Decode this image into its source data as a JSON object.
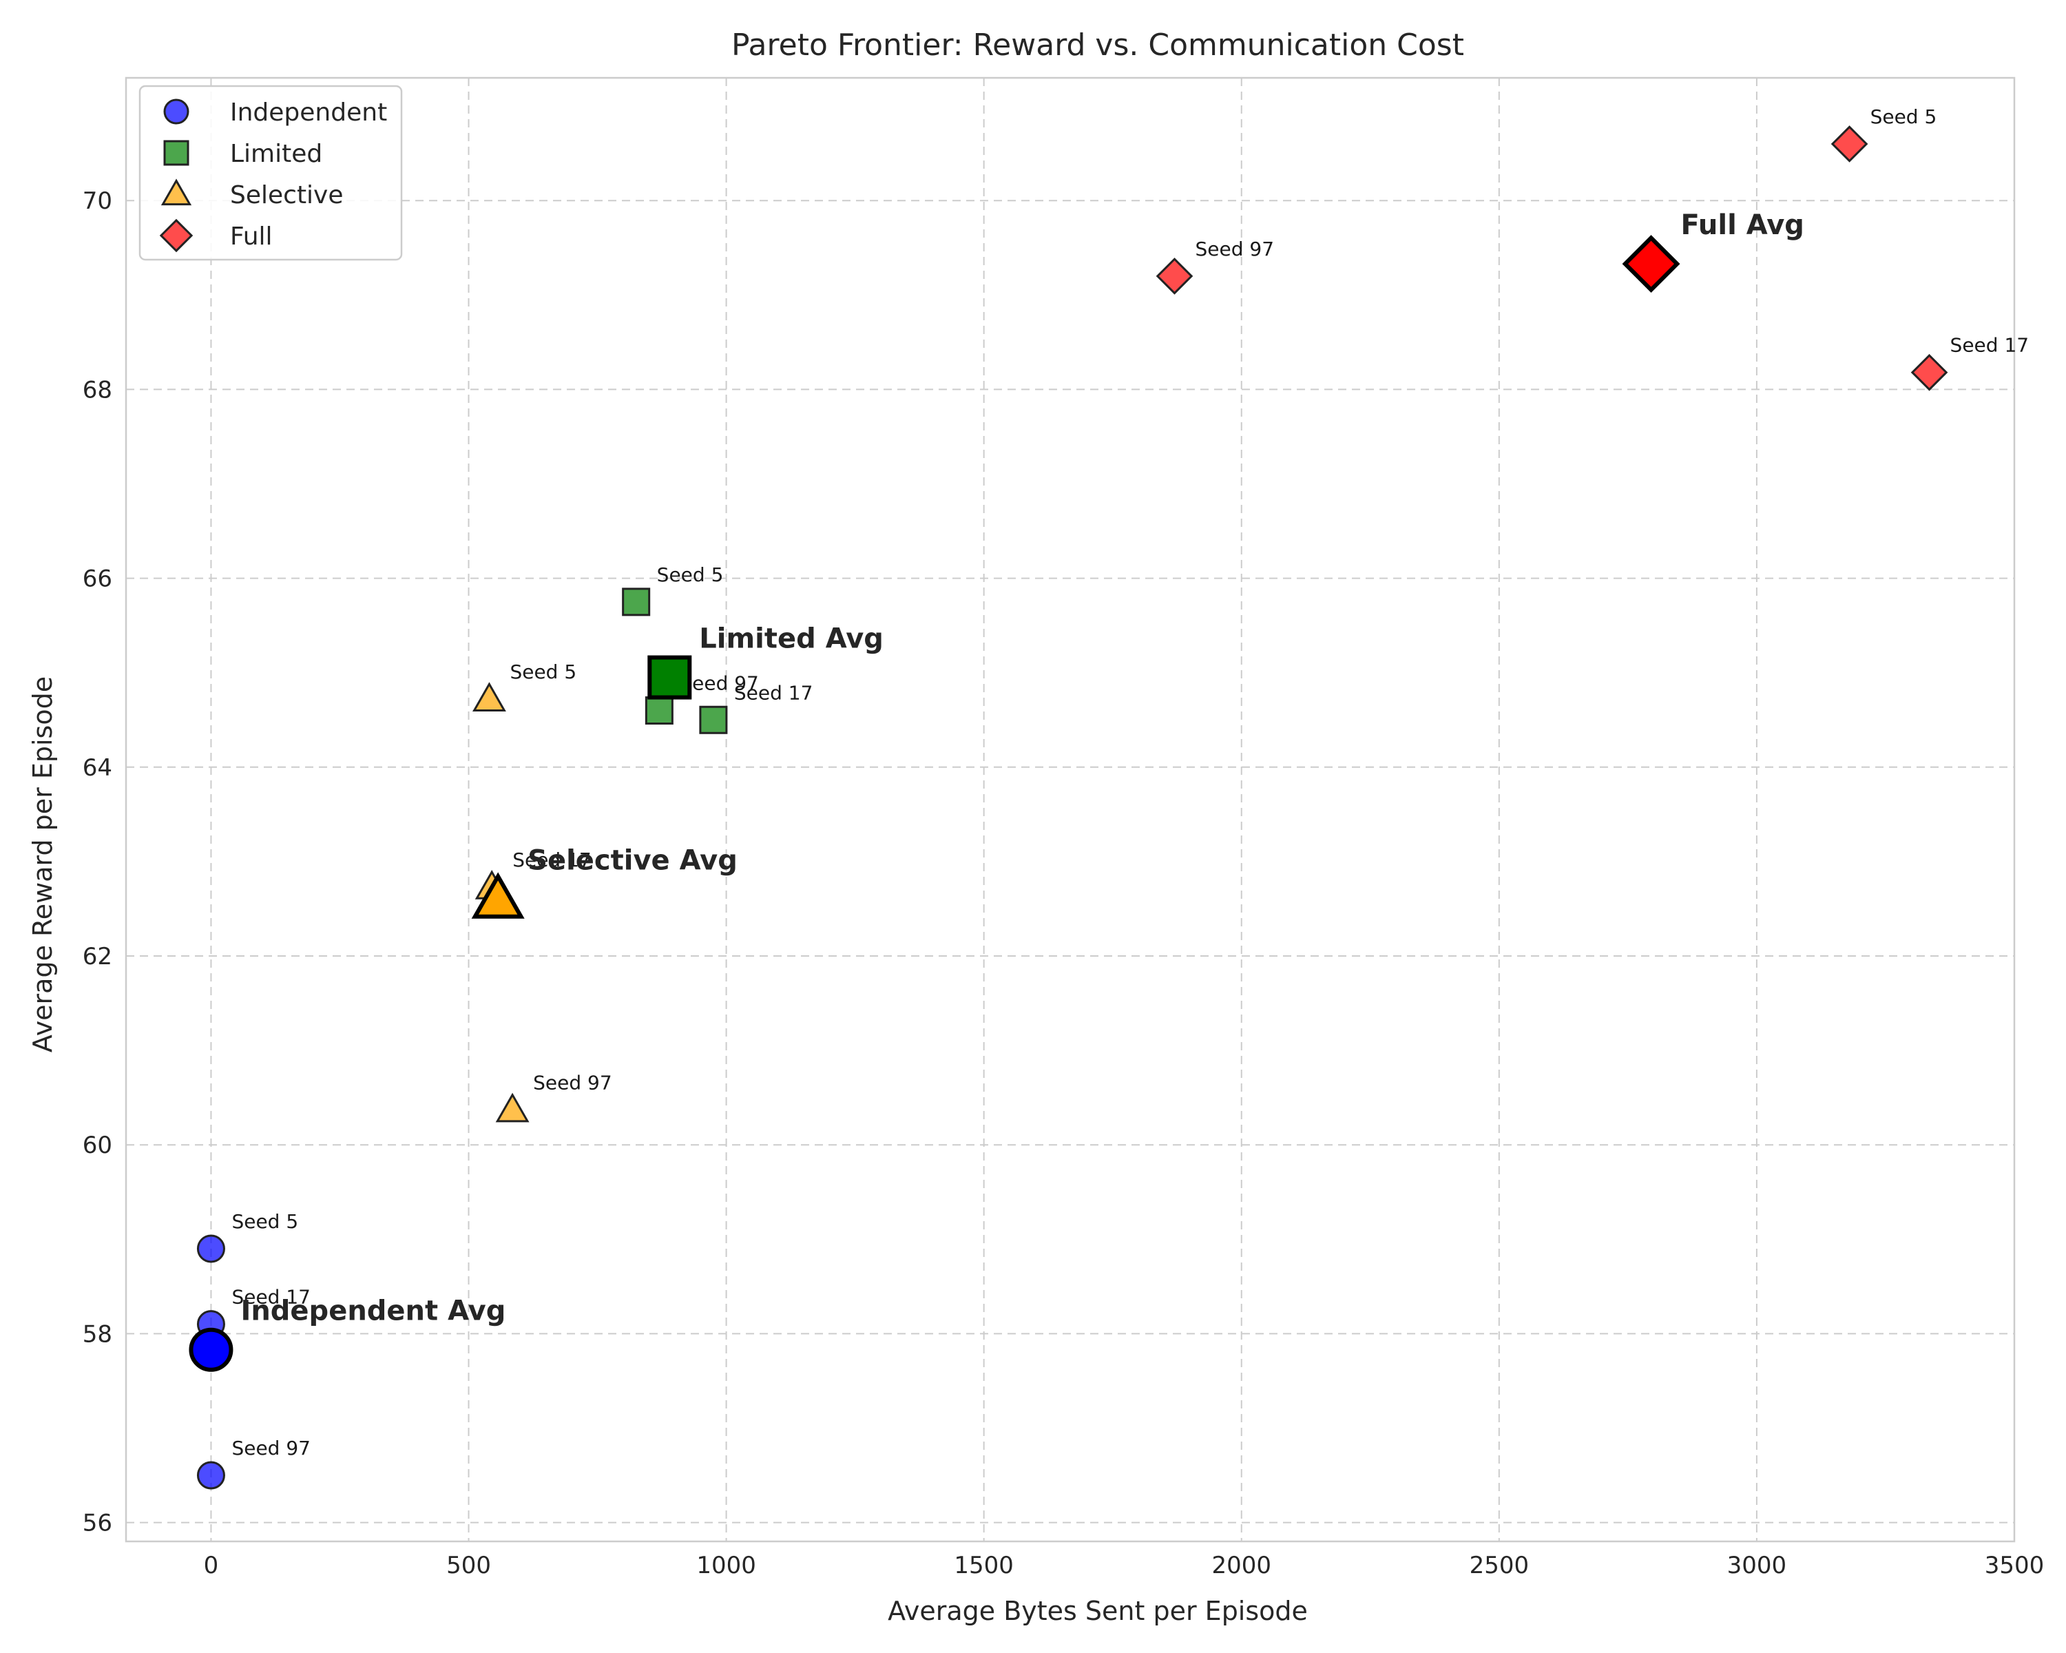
{
  "chart_data": {
    "type": "scatter",
    "title": "Pareto Frontier: Reward vs. Communication Cost",
    "xlabel": "Average Bytes Sent per Episode",
    "ylabel": "Average Reward per Episode",
    "xlim": [
      -165,
      3500
    ],
    "ylim": [
      55.8,
      71.3
    ],
    "xticks": [
      0,
      500,
      1000,
      1500,
      2000,
      2500,
      3000,
      3500
    ],
    "yticks": [
      56,
      58,
      60,
      62,
      64,
      66,
      68,
      70
    ],
    "grid": true,
    "legend_position": "upper-left",
    "series": [
      {
        "name": "Independent",
        "marker": "circle",
        "color": "#0000ff",
        "points": [
          {
            "x": 0,
            "y": 58.9,
            "label": "Seed 5"
          },
          {
            "x": 0,
            "y": 58.1,
            "label": "Seed 17"
          },
          {
            "x": 0,
            "y": 56.5,
            "label": "Seed 97"
          }
        ],
        "average": {
          "x": 0,
          "y": 57.83,
          "label": "Independent Avg"
        }
      },
      {
        "name": "Limited",
        "marker": "square",
        "color": "#008000",
        "points": [
          {
            "x": 825,
            "y": 65.75,
            "label": "Seed 5"
          },
          {
            "x": 975,
            "y": 64.5,
            "label": "Seed 17"
          },
          {
            "x": 870,
            "y": 64.6,
            "label": "Seed 97"
          }
        ],
        "average": {
          "x": 890,
          "y": 64.95,
          "label": "Limited Avg"
        }
      },
      {
        "name": "Selective",
        "marker": "triangle",
        "color": "#ffa500",
        "points": [
          {
            "x": 540,
            "y": 64.72,
            "label": "Seed 5"
          },
          {
            "x": 545,
            "y": 62.73,
            "label": "Seed 17"
          },
          {
            "x": 585,
            "y": 60.37,
            "label": "Seed 97"
          }
        ],
        "average": {
          "x": 557,
          "y": 62.6,
          "label": "Selective Avg"
        }
      },
      {
        "name": "Full",
        "marker": "diamond",
        "color": "#ff0000",
        "points": [
          {
            "x": 3180,
            "y": 70.6,
            "label": "Seed 5"
          },
          {
            "x": 3335,
            "y": 68.18,
            "label": "Seed 17"
          },
          {
            "x": 1870,
            "y": 69.2,
            "label": "Seed 97"
          }
        ],
        "average": {
          "x": 2795,
          "y": 69.33,
          "label": "Full Avg"
        }
      }
    ]
  }
}
